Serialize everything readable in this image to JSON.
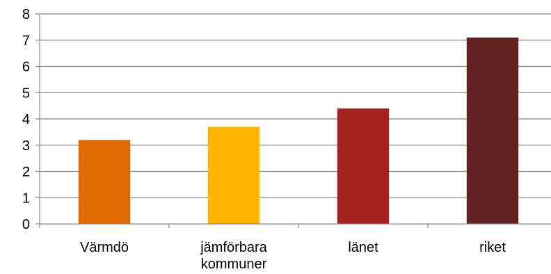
{
  "chart_data": {
    "type": "bar",
    "title": "",
    "xlabel": "",
    "ylabel": "",
    "categories": [
      {
        "lines": [
          "Värmdö"
        ]
      },
      {
        "lines": [
          "jämförbara",
          "kommuner"
        ]
      },
      {
        "lines": [
          "länet"
        ]
      },
      {
        "lines": [
          "riket"
        ]
      }
    ],
    "values": [
      3.2,
      3.7,
      4.4,
      7.1
    ],
    "colors": [
      "#E06C00",
      "#FFB400",
      "#A32121",
      "#612322"
    ],
    "ylim": [
      0,
      8
    ],
    "yticks": [
      "0",
      "1",
      "2",
      "3",
      "4",
      "5",
      "6",
      "7",
      "8"
    ],
    "grid": true,
    "legend": "none"
  }
}
